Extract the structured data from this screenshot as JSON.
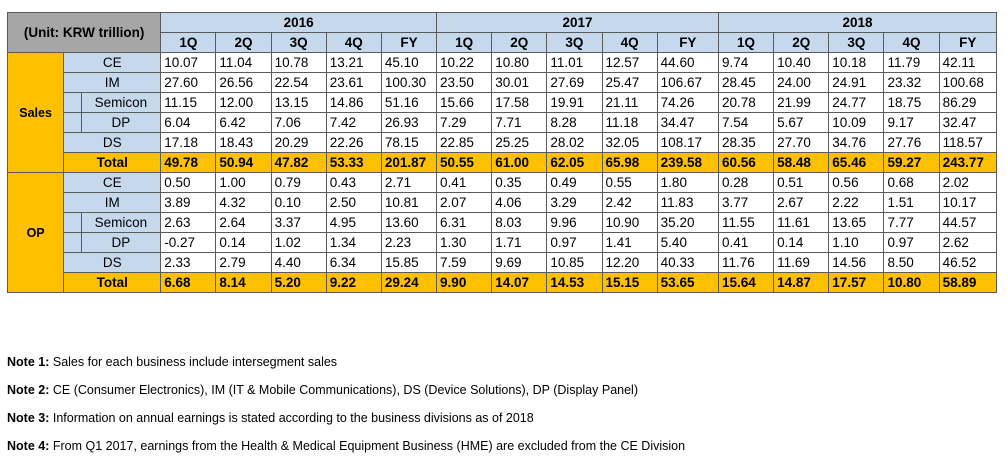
{
  "table": {
    "unit_label": "(Unit: KRW trillion)",
    "years": [
      "2016",
      "2017",
      "2018"
    ],
    "periods": [
      "1Q",
      "2Q",
      "3Q",
      "4Q",
      "FY"
    ],
    "groups": [
      {
        "label": "Sales",
        "rows": [
          {
            "segment": "CE",
            "indent": false,
            "values": [
              "10.07",
              "11.04",
              "10.78",
              "13.21",
              "45.10",
              "10.22",
              "10.80",
              "11.01",
              "12.57",
              "44.60",
              "9.74",
              "10.40",
              "10.18",
              "11.79",
              "42.11"
            ]
          },
          {
            "segment": "IM",
            "indent": false,
            "values": [
              "27.60",
              "26.56",
              "22.54",
              "23.61",
              "100.30",
              "23.50",
              "30.01",
              "27.69",
              "25.47",
              "106.67",
              "28.45",
              "24.00",
              "24.91",
              "23.32",
              "100.68"
            ]
          },
          {
            "segment": "Semicon",
            "indent": true,
            "values": [
              "11.15",
              "12.00",
              "13.15",
              "14.86",
              "51.16",
              "15.66",
              "17.58",
              "19.91",
              "21.11",
              "74.26",
              "20.78",
              "21.99",
              "24.77",
              "18.75",
              "86.29"
            ]
          },
          {
            "segment": "DP",
            "indent": true,
            "values": [
              "6.04",
              "6.42",
              "7.06",
              "7.42",
              "26.93",
              "7.29",
              "7.71",
              "8.28",
              "11.18",
              "34.47",
              "7.54",
              "5.67",
              "10.09",
              "9.17",
              "32.47"
            ]
          },
          {
            "segment": "DS",
            "indent": false,
            "values": [
              "17.18",
              "18.43",
              "20.29",
              "22.26",
              "78.15",
              "22.85",
              "25.25",
              "28.02",
              "32.05",
              "108.17",
              "28.35",
              "27.70",
              "34.76",
              "27.76",
              "118.57"
            ]
          }
        ],
        "total": {
          "segment": "Total",
          "values": [
            "49.78",
            "50.94",
            "47.82",
            "53.33",
            "201.87",
            "50.55",
            "61.00",
            "62.05",
            "65.98",
            "239.58",
            "60.56",
            "58.48",
            "65.46",
            "59.27",
            "243.77"
          ]
        }
      },
      {
        "label": "OP",
        "rows": [
          {
            "segment": "CE",
            "indent": false,
            "values": [
              "0.50",
              "1.00",
              "0.79",
              "0.43",
              "2.71",
              "0.41",
              "0.35",
              "0.49",
              "0.55",
              "1.80",
              "0.28",
              "0.51",
              "0.56",
              "0.68",
              "2.02"
            ]
          },
          {
            "segment": "IM",
            "indent": false,
            "values": [
              "3.89",
              "4.32",
              "0.10",
              "2.50",
              "10.81",
              "2.07",
              "4.06",
              "3.29",
              "2.42",
              "11.83",
              "3.77",
              "2.67",
              "2.22",
              "1.51",
              "10.17"
            ]
          },
          {
            "segment": "Semicon",
            "indent": true,
            "values": [
              "2.63",
              "2.64",
              "3.37",
              "4.95",
              "13.60",
              "6.31",
              "8.03",
              "9.96",
              "10.90",
              "35.20",
              "11.55",
              "11.61",
              "13.65",
              "7.77",
              "44.57"
            ]
          },
          {
            "segment": "DP",
            "indent": true,
            "values": [
              "-0.27",
              "0.14",
              "1.02",
              "1.34",
              "2.23",
              "1.30",
              "1.71",
              "0.97",
              "1.41",
              "5.40",
              "0.41",
              "0.14",
              "1.10",
              "0.97",
              "2.62"
            ]
          },
          {
            "segment": "DS",
            "indent": false,
            "values": [
              "2.33",
              "2.79",
              "4.40",
              "6.34",
              "15.85",
              "7.59",
              "9.69",
              "10.85",
              "12.20",
              "40.33",
              "11.76",
              "11.69",
              "14.56",
              "8.50",
              "46.52"
            ]
          }
        ],
        "total": {
          "segment": "Total",
          "values": [
            "6.68",
            "8.14",
            "5.20",
            "9.22",
            "29.24",
            "9.90",
            "14.07",
            "14.53",
            "15.15",
            "53.65",
            "15.64",
            "14.87",
            "17.57",
            "10.80",
            "58.89"
          ]
        }
      }
    ]
  },
  "notes": [
    {
      "label": "Note 1:",
      "text": "Sales for each business include intersegment sales"
    },
    {
      "label": "Note 2:",
      "text": "CE (Consumer Electronics), IM (IT & Mobile Communications), DS (Device Solutions), DP (Display Panel)"
    },
    {
      "label": "Note 3:",
      "text": "Information on annual earnings is stated according to the business divisions as of 2018"
    },
    {
      "label": "Note 4:",
      "text": "From Q1 2017, earnings from the Health & Medical Equipment Business (HME) are excluded from the CE Division"
    }
  ]
}
